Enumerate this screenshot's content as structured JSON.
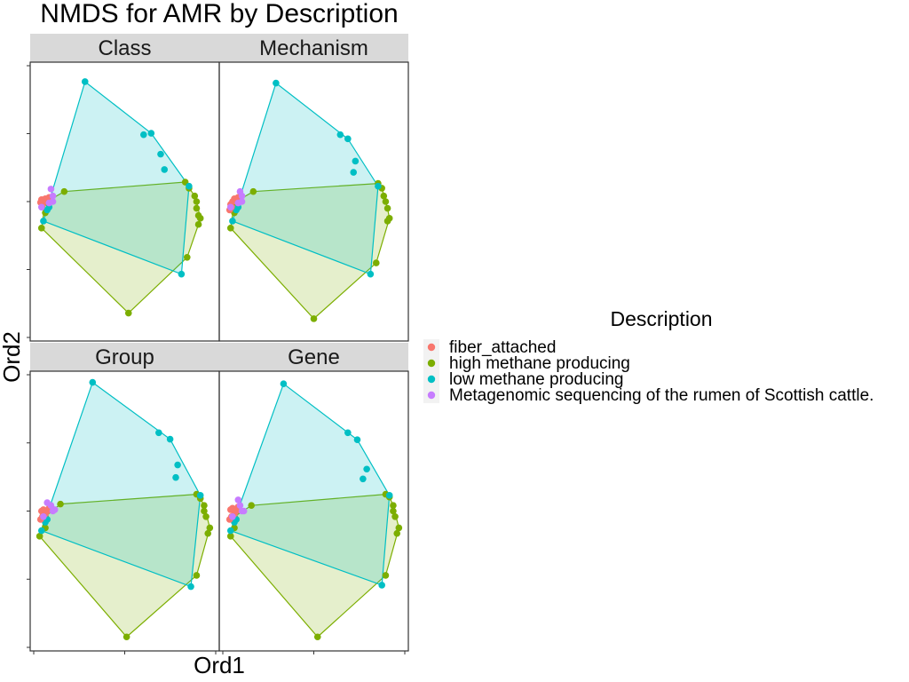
{
  "chart_data": {
    "type": "scatter",
    "title": "NMDS for AMR by Description",
    "xlabel": "Ord1",
    "ylabel": "Ord2",
    "legend": {
      "title": "Description",
      "placement": "right",
      "entries": [
        {
          "key": "fiber",
          "label": "fiber_attached",
          "color": "#F8766D"
        },
        {
          "key": "high",
          "label": "high methane producing",
          "color": "#7CAE00"
        },
        {
          "key": "low",
          "label": "low methane producing",
          "color": "#00BFC4"
        },
        {
          "key": "meta",
          "label": "Metagenomic sequencing of the rumen of Scottish cattle.",
          "color": "#C77CFF"
        }
      ]
    },
    "grid": false,
    "hulls": [
      "low",
      "high"
    ],
    "facets": [
      {
        "label": "Class",
        "points": {
          "fiber": [
            [
              0.06,
              0.507
            ],
            [
              0.07,
              0.505
            ],
            [
              0.08,
              0.51
            ],
            [
              0.065,
              0.49
            ],
            [
              0.09,
              0.5
            ],
            [
              0.055,
              0.497
            ],
            [
              0.1,
              0.515
            ]
          ],
          "high": [
            [
              0.18,
              0.536
            ],
            [
              0.08,
              0.497
            ],
            [
              0.06,
              0.405
            ],
            [
              0.08,
              0.46
            ],
            [
              0.52,
              0.1
            ],
            [
              0.82,
              0.57
            ],
            [
              0.84,
              0.548
            ],
            [
              0.87,
              0.52
            ],
            [
              0.88,
              0.476
            ],
            [
              0.89,
              0.45
            ],
            [
              0.9,
              0.44
            ],
            [
              0.89,
              0.418
            ],
            [
              0.88,
              0.5
            ],
            [
              0.83,
              0.3
            ]
          ],
          "low": [
            [
              0.29,
              0.93
            ],
            [
              0.6,
              0.74
            ],
            [
              0.64,
              0.745
            ],
            [
              0.69,
              0.67
            ],
            [
              0.71,
              0.615
            ],
            [
              0.8,
              0.24
            ],
            [
              0.84,
              0.555
            ],
            [
              0.09,
              0.47
            ],
            [
              0.07,
              0.43
            ],
            [
              0.1,
              0.48
            ]
          ],
          "meta": [
            [
              0.11,
              0.545
            ],
            [
              0.12,
              0.52
            ],
            [
              0.1,
              0.495
            ],
            [
              0.06,
              0.48
            ],
            [
              0.12,
              0.5
            ]
          ]
        }
      },
      {
        "label": "Mechanism",
        "points": {
          "fiber": [
            [
              0.06,
              0.49
            ],
            [
              0.07,
              0.5
            ],
            [
              0.08,
              0.51
            ],
            [
              0.065,
              0.48
            ],
            [
              0.09,
              0.5
            ],
            [
              0.055,
              0.47
            ],
            [
              0.1,
              0.515
            ]
          ],
          "high": [
            [
              0.18,
              0.536
            ],
            [
              0.08,
              0.497
            ],
            [
              0.06,
              0.405
            ],
            [
              0.08,
              0.46
            ],
            [
              0.5,
              0.08
            ],
            [
              0.84,
              0.565
            ],
            [
              0.86,
              0.548
            ],
            [
              0.87,
              0.52
            ],
            [
              0.89,
              0.476
            ],
            [
              0.9,
              0.44
            ],
            [
              0.89,
              0.43
            ],
            [
              0.88,
              0.5
            ],
            [
              0.83,
              0.28
            ]
          ],
          "low": [
            [
              0.3,
              0.925
            ],
            [
              0.64,
              0.74
            ],
            [
              0.68,
              0.725
            ],
            [
              0.72,
              0.645
            ],
            [
              0.71,
              0.605
            ],
            [
              0.8,
              0.24
            ],
            [
              0.84,
              0.555
            ],
            [
              0.09,
              0.47
            ],
            [
              0.07,
              0.43
            ],
            [
              0.1,
              0.48
            ]
          ],
          "meta": [
            [
              0.11,
              0.536
            ],
            [
              0.12,
              0.52
            ],
            [
              0.1,
              0.495
            ],
            [
              0.06,
              0.48
            ],
            [
              0.12,
              0.5
            ]
          ]
        }
      },
      {
        "label": "Group",
        "points": {
          "fiber": [
            [
              0.06,
              0.5
            ],
            [
              0.07,
              0.505
            ],
            [
              0.08,
              0.49
            ],
            [
              0.065,
              0.48
            ],
            [
              0.09,
              0.5
            ],
            [
              0.055,
              0.47
            ],
            [
              0.1,
              0.51
            ]
          ],
          "high": [
            [
              0.16,
              0.525
            ],
            [
              0.08,
              0.48
            ],
            [
              0.05,
              0.41
            ],
            [
              0.08,
              0.44
            ],
            [
              0.51,
              0.05
            ],
            [
              0.88,
              0.56
            ],
            [
              0.9,
              0.545
            ],
            [
              0.92,
              0.52
            ],
            [
              0.93,
              0.48
            ],
            [
              0.95,
              0.44
            ],
            [
              0.94,
              0.42
            ],
            [
              0.92,
              0.5
            ],
            [
              0.88,
              0.27
            ]
          ],
          "low": [
            [
              0.33,
              0.96
            ],
            [
              0.68,
              0.78
            ],
            [
              0.74,
              0.757
            ],
            [
              0.78,
              0.665
            ],
            [
              0.77,
              0.62
            ],
            [
              0.85,
              0.23
            ],
            [
              0.9,
              0.556
            ],
            [
              0.08,
              0.46
            ],
            [
              0.06,
              0.43
            ],
            [
              0.09,
              0.47
            ]
          ],
          "meta": [
            [
              0.09,
              0.53
            ],
            [
              0.11,
              0.52
            ],
            [
              0.13,
              0.505
            ],
            [
              0.07,
              0.48
            ],
            [
              0.12,
              0.5
            ]
          ]
        }
      },
      {
        "label": "Gene",
        "points": {
          "fiber": [
            [
              0.06,
              0.505
            ],
            [
              0.07,
              0.51
            ],
            [
              0.08,
              0.49
            ],
            [
              0.065,
              0.48
            ],
            [
              0.09,
              0.5
            ],
            [
              0.055,
              0.47
            ],
            [
              0.1,
              0.515
            ]
          ],
          "high": [
            [
              0.17,
              0.52
            ],
            [
              0.08,
              0.48
            ],
            [
              0.06,
              0.41
            ],
            [
              0.08,
              0.44
            ],
            [
              0.52,
              0.05
            ],
            [
              0.88,
              0.56
            ],
            [
              0.9,
              0.55
            ],
            [
              0.92,
              0.52
            ],
            [
              0.93,
              0.48
            ],
            [
              0.95,
              0.44
            ],
            [
              0.94,
              0.42
            ],
            [
              0.92,
              0.5
            ],
            [
              0.88,
              0.27
            ]
          ],
          "low": [
            [
              0.34,
              0.955
            ],
            [
              0.68,
              0.78
            ],
            [
              0.73,
              0.755
            ],
            [
              0.78,
              0.65
            ],
            [
              0.76,
              0.615
            ],
            [
              0.86,
              0.235
            ],
            [
              0.9,
              0.556
            ],
            [
              0.08,
              0.46
            ],
            [
              0.06,
              0.43
            ],
            [
              0.09,
              0.47
            ]
          ],
          "meta": [
            [
              0.1,
              0.54
            ],
            [
              0.11,
              0.52
            ],
            [
              0.13,
              0.5
            ],
            [
              0.07,
              0.48
            ],
            [
              0.12,
              0.5
            ]
          ]
        }
      }
    ]
  }
}
